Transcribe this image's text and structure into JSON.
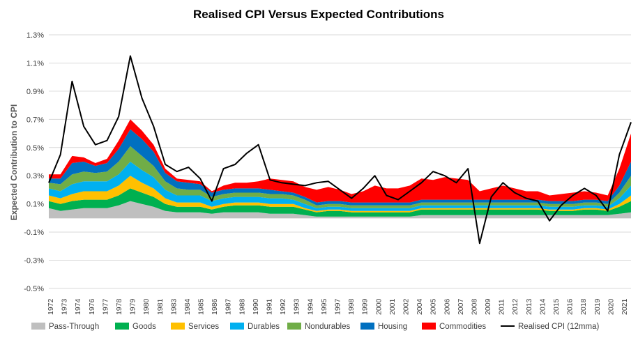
{
  "chart_data": {
    "type": "area",
    "title": "Realised CPI Versus Expected Contributions",
    "xlabel": "",
    "ylabel": "Expected Contribution to CPI",
    "ylim": [
      -0.5,
      1.3
    ],
    "y_ticks": [
      "1.3%",
      "1.1%",
      "0.9%",
      "0.7%",
      "0.5%",
      "0.3%",
      "0.1%",
      "-0.1%",
      "-0.3%",
      "-0.5%"
    ],
    "x_ticks": [
      "1972",
      "1973",
      "1974",
      "1976",
      "1977",
      "1978",
      "1979",
      "1980",
      "1981",
      "1983",
      "1984",
      "1985",
      "1986",
      "1987",
      "1988",
      "1990",
      "1991",
      "1992",
      "1993",
      "1994",
      "1995",
      "1997",
      "1998",
      "1999",
      "2000",
      "2001",
      "2002",
      "2004",
      "2005",
      "2006",
      "2007",
      "2008",
      "2009",
      "2011",
      "2012",
      "2013",
      "2014",
      "2015",
      "2016",
      "2018",
      "2019",
      "2020",
      "2021"
    ],
    "grid": true,
    "legend_position": "bottom",
    "stacked": true,
    "x": [
      1972,
      1973,
      1974,
      1975,
      1976,
      1977,
      1978,
      1979,
      1980,
      1981,
      1982,
      1983,
      1984,
      1985,
      1986,
      1987,
      1988,
      1989,
      1990,
      1991,
      1992,
      1993,
      1994,
      1995,
      1996,
      1997,
      1998,
      1999,
      2000,
      2001,
      2002,
      2003,
      2004,
      2005,
      2006,
      2007,
      2008,
      2009,
      2010,
      2011,
      2012,
      2013,
      2014,
      2015,
      2016,
      2017,
      2018,
      2019,
      2020,
      2021,
      2022
    ],
    "series": [
      {
        "name": "Pass-Through",
        "color": "#bfbfbf",
        "type": "area",
        "values": [
          0.07,
          0.05,
          0.06,
          0.07,
          0.07,
          0.07,
          0.09,
          0.12,
          0.1,
          0.08,
          0.05,
          0.04,
          0.04,
          0.04,
          0.03,
          0.04,
          0.04,
          0.04,
          0.04,
          0.03,
          0.03,
          0.03,
          0.02,
          0.01,
          0.01,
          0.01,
          0.01,
          0.01,
          0.01,
          0.01,
          0.01,
          0.01,
          0.02,
          0.02,
          0.02,
          0.02,
          0.02,
          0.02,
          0.02,
          0.02,
          0.02,
          0.02,
          0.02,
          0.02,
          0.02,
          0.02,
          0.02,
          0.02,
          0.02,
          0.03,
          0.04
        ]
      },
      {
        "name": "Goods",
        "color": "#00b050",
        "type": "area",
        "values": [
          0.05,
          0.05,
          0.06,
          0.06,
          0.06,
          0.06,
          0.07,
          0.09,
          0.08,
          0.07,
          0.05,
          0.04,
          0.04,
          0.04,
          0.03,
          0.04,
          0.05,
          0.05,
          0.05,
          0.05,
          0.05,
          0.05,
          0.04,
          0.03,
          0.04,
          0.04,
          0.03,
          0.03,
          0.03,
          0.03,
          0.03,
          0.03,
          0.04,
          0.04,
          0.04,
          0.04,
          0.04,
          0.04,
          0.04,
          0.04,
          0.04,
          0.04,
          0.04,
          0.03,
          0.03,
          0.03,
          0.04,
          0.04,
          0.03,
          0.05,
          0.08
        ]
      },
      {
        "name": "Services",
        "color": "#ffc000",
        "type": "area",
        "values": [
          0.04,
          0.04,
          0.05,
          0.06,
          0.06,
          0.06,
          0.07,
          0.09,
          0.07,
          0.06,
          0.04,
          0.03,
          0.03,
          0.03,
          0.02,
          0.02,
          0.02,
          0.02,
          0.02,
          0.02,
          0.02,
          0.02,
          0.01,
          0.01,
          0.01,
          0.01,
          0.01,
          0.01,
          0.01,
          0.01,
          0.01,
          0.01,
          0.01,
          0.01,
          0.01,
          0.01,
          0.01,
          0.01,
          0.01,
          0.01,
          0.01,
          0.01,
          0.01,
          0.01,
          0.01,
          0.01,
          0.01,
          0.01,
          0.01,
          0.02,
          0.04
        ]
      },
      {
        "name": "Durables",
        "color": "#00b0f0",
        "type": "area",
        "values": [
          0.05,
          0.05,
          0.07,
          0.07,
          0.07,
          0.07,
          0.08,
          0.1,
          0.09,
          0.08,
          0.06,
          0.05,
          0.05,
          0.05,
          0.04,
          0.04,
          0.04,
          0.04,
          0.04,
          0.04,
          0.04,
          0.03,
          0.03,
          0.02,
          0.02,
          0.02,
          0.02,
          0.02,
          0.02,
          0.02,
          0.02,
          0.02,
          0.02,
          0.02,
          0.02,
          0.02,
          0.02,
          0.02,
          0.02,
          0.02,
          0.02,
          0.02,
          0.02,
          0.02,
          0.02,
          0.02,
          0.02,
          0.02,
          0.02,
          0.04,
          0.07
        ]
      },
      {
        "name": "Nondurables",
        "color": "#70ad47",
        "type": "area",
        "values": [
          0.04,
          0.05,
          0.07,
          0.07,
          0.06,
          0.07,
          0.09,
          0.11,
          0.1,
          0.08,
          0.06,
          0.05,
          0.04,
          0.04,
          0.03,
          0.03,
          0.03,
          0.03,
          0.03,
          0.03,
          0.03,
          0.03,
          0.03,
          0.02,
          0.02,
          0.02,
          0.02,
          0.02,
          0.02,
          0.02,
          0.02,
          0.02,
          0.02,
          0.02,
          0.02,
          0.02,
          0.02,
          0.02,
          0.02,
          0.02,
          0.02,
          0.02,
          0.02,
          0.02,
          0.02,
          0.02,
          0.02,
          0.02,
          0.02,
          0.04,
          0.07
        ]
      },
      {
        "name": "Housing",
        "color": "#0070c0",
        "type": "area",
        "values": [
          0.03,
          0.04,
          0.08,
          0.07,
          0.05,
          0.06,
          0.09,
          0.12,
          0.12,
          0.1,
          0.06,
          0.05,
          0.05,
          0.04,
          0.03,
          0.03,
          0.03,
          0.03,
          0.03,
          0.03,
          0.02,
          0.02,
          0.02,
          0.02,
          0.02,
          0.02,
          0.02,
          0.02,
          0.02,
          0.02,
          0.02,
          0.02,
          0.02,
          0.02,
          0.02,
          0.02,
          0.02,
          0.02,
          0.02,
          0.02,
          0.02,
          0.02,
          0.02,
          0.02,
          0.02,
          0.02,
          0.02,
          0.02,
          0.02,
          0.05,
          0.1
        ]
      },
      {
        "name": "Commodities",
        "color": "#ff0000",
        "type": "area",
        "values": [
          0.03,
          0.03,
          0.05,
          0.03,
          0.02,
          0.03,
          0.06,
          0.07,
          0.06,
          0.05,
          0.03,
          0.02,
          0.02,
          0.02,
          0.01,
          0.03,
          0.04,
          0.04,
          0.05,
          0.08,
          0.08,
          0.08,
          0.07,
          0.09,
          0.1,
          0.08,
          0.06,
          0.08,
          0.12,
          0.1,
          0.1,
          0.12,
          0.15,
          0.14,
          0.16,
          0.15,
          0.14,
          0.06,
          0.08,
          0.1,
          0.08,
          0.06,
          0.06,
          0.04,
          0.05,
          0.06,
          0.06,
          0.05,
          0.04,
          0.12,
          0.2
        ]
      },
      {
        "name": "Realised CPI (12mma)",
        "color": "#000000",
        "type": "line",
        "values": [
          0.25,
          0.45,
          0.97,
          0.65,
          0.52,
          0.55,
          0.72,
          1.15,
          0.85,
          0.65,
          0.38,
          0.33,
          0.36,
          0.28,
          0.12,
          0.35,
          0.38,
          0.46,
          0.52,
          0.27,
          0.25,
          0.24,
          0.23,
          0.25,
          0.26,
          0.2,
          0.14,
          0.21,
          0.3,
          0.16,
          0.13,
          0.19,
          0.25,
          0.33,
          0.3,
          0.25,
          0.35,
          -0.18,
          0.15,
          0.25,
          0.18,
          0.14,
          0.12,
          -0.02,
          0.09,
          0.16,
          0.21,
          0.16,
          0.05,
          0.45,
          0.68
        ]
      }
    ]
  }
}
